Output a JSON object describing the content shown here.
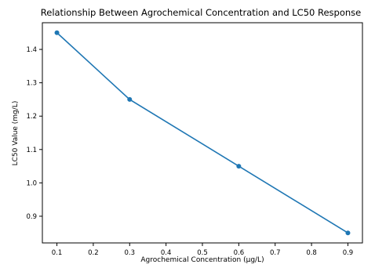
{
  "chart_data": {
    "type": "line",
    "title": "Relationship Between Agrochemical Concentration and LC50 Response",
    "xlabel": "Agrochemical Concentration (µg/L)",
    "ylabel": "LC50 Value (mg/L)",
    "x": [
      0.1,
      0.3,
      0.6,
      0.9
    ],
    "series": [
      {
        "values": [
          1.45,
          1.25,
          1.05,
          0.85
        ]
      }
    ],
    "xlim": [
      0.06,
      0.94
    ],
    "ylim": [
      0.82,
      1.48
    ],
    "xticks": [
      0.1,
      0.2,
      0.3,
      0.4,
      0.5,
      0.6,
      0.7,
      0.8,
      0.9
    ],
    "xtick_labels": [
      "0.1",
      "0.2",
      "0.3",
      "0.4",
      "0.5",
      "0.6",
      "0.7",
      "0.8",
      "0.9"
    ],
    "yticks": [
      0.9,
      1.0,
      1.1,
      1.2,
      1.3,
      1.4
    ],
    "ytick_labels": [
      "0.9",
      "1.0",
      "1.1",
      "1.2",
      "1.3",
      "1.4"
    ],
    "grid": false,
    "line_color": "#1f77b4",
    "marker": "circle"
  }
}
